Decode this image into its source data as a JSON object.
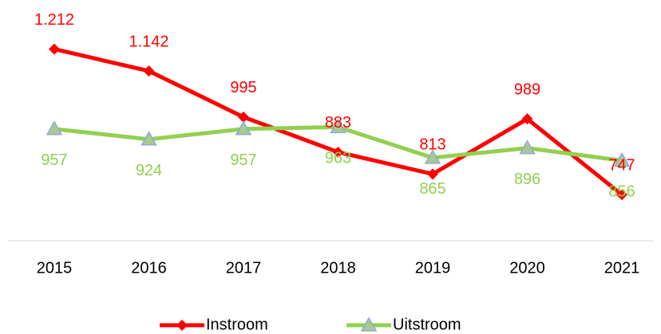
{
  "chart_data": {
    "type": "line",
    "categories": [
      "2015",
      "2016",
      "2017",
      "2018",
      "2019",
      "2020",
      "2021"
    ],
    "series": [
      {
        "name": "Instroom",
        "color": "#ff0000",
        "marker": "diamond",
        "values": [
          1212,
          1142,
          995,
          883,
          813,
          989,
          747
        ],
        "value_labels": [
          "1.212",
          "1.142",
          "995",
          "883",
          "813",
          "989",
          "747"
        ]
      },
      {
        "name": "Uitstroom",
        "color": "#92d050",
        "marker": "triangle",
        "values": [
          957,
          924,
          957,
          963,
          865,
          896,
          856
        ]
      }
    ],
    "ylim": [
      600,
      1300
    ],
    "legend": "bottom"
  }
}
